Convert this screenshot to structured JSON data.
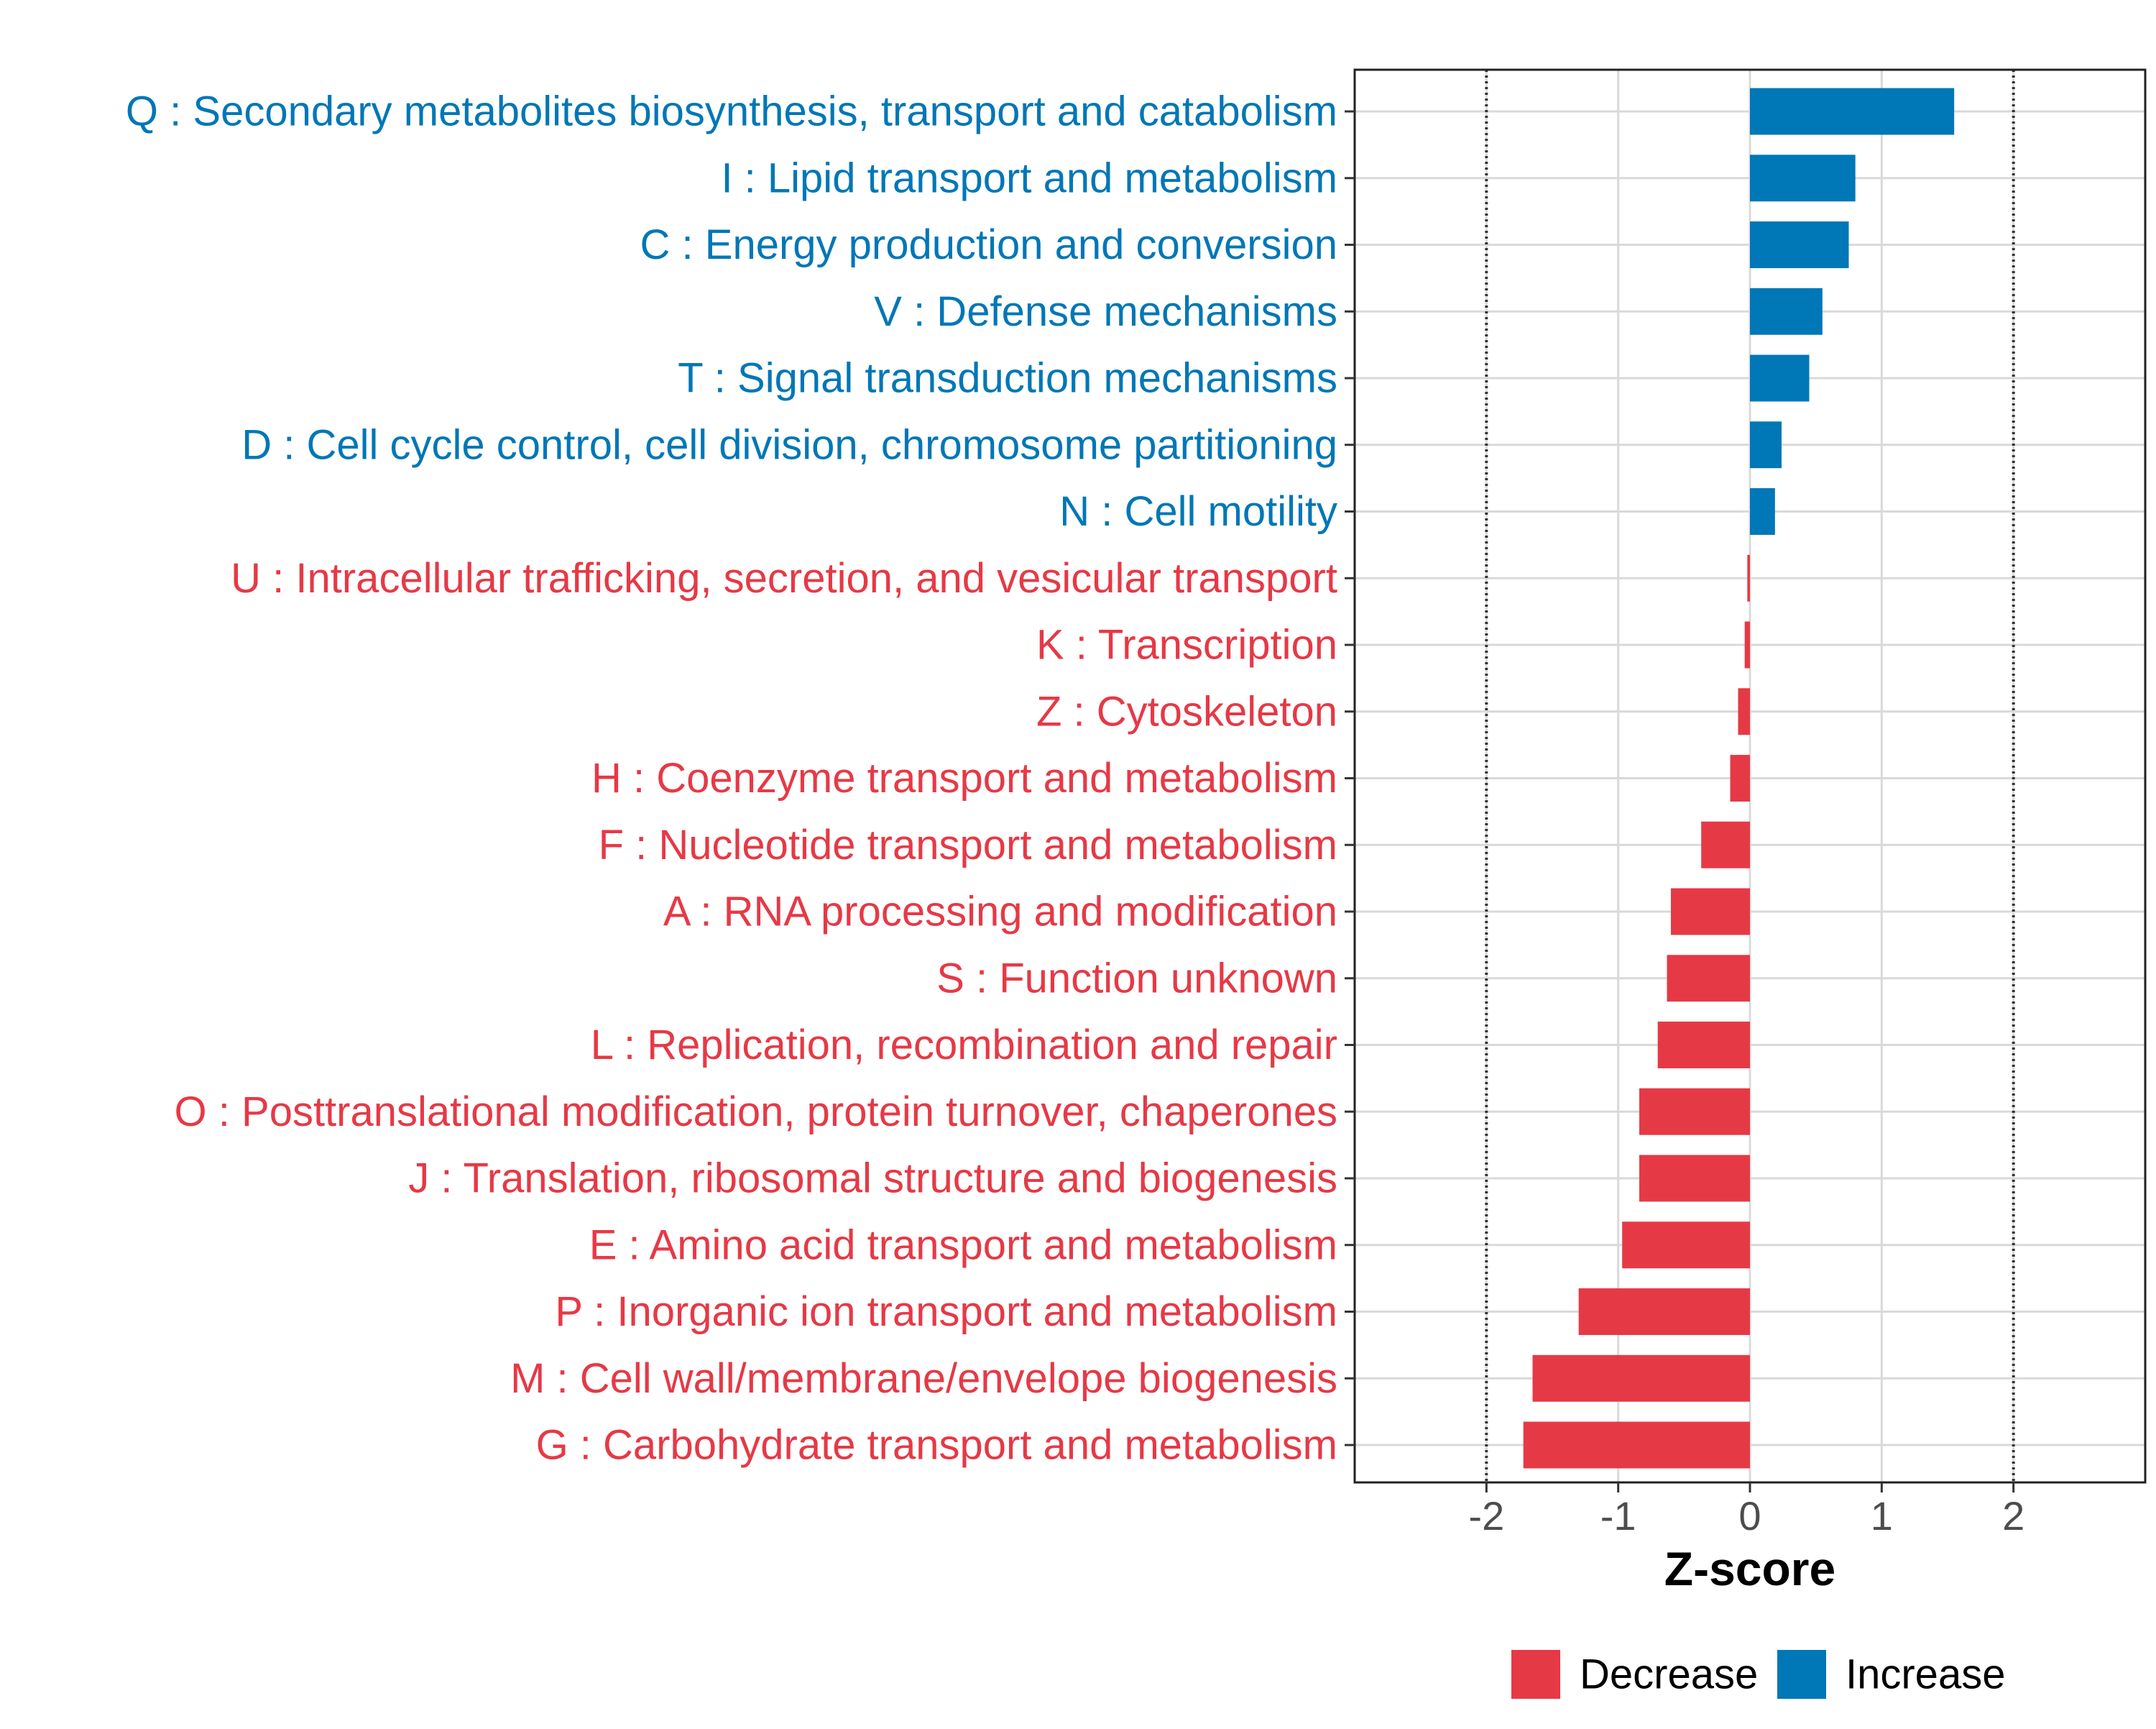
{
  "chart_data": {
    "type": "bar",
    "orientation": "horizontal",
    "xlabel": "Z-score",
    "xlim": [
      -3.0,
      3.0
    ],
    "x_ticks": [
      -2,
      -1,
      0,
      1,
      2
    ],
    "x_tick_labels": [
      "-2",
      "-1",
      "0",
      "1",
      "2"
    ],
    "reference_lines": [
      -2,
      2
    ],
    "grid": true,
    "legend": {
      "placement": "bottom",
      "entries": [
        {
          "label": "Decrease",
          "color": "#E63946"
        },
        {
          "label": "Increase",
          "color": "#0077B6"
        }
      ]
    },
    "categories": [
      {
        "label": "Q : Secondary metabolites biosynthesis, transport and catabolism",
        "value": 1.55,
        "direction": "Increase"
      },
      {
        "label": "I : Lipid transport and metabolism",
        "value": 0.8,
        "direction": "Increase"
      },
      {
        "label": "C : Energy production and conversion",
        "value": 0.75,
        "direction": "Increase"
      },
      {
        "label": "V : Defense mechanisms",
        "value": 0.55,
        "direction": "Increase"
      },
      {
        "label": "T : Signal transduction mechanisms",
        "value": 0.45,
        "direction": "Increase"
      },
      {
        "label": "D : Cell cycle control, cell division, chromosome partitioning",
        "value": 0.24,
        "direction": "Increase"
      },
      {
        "label": "N : Cell motility",
        "value": 0.19,
        "direction": "Increase"
      },
      {
        "label": "U : Intracellular trafficking, secretion, and vesicular transport",
        "value": -0.02,
        "direction": "Decrease"
      },
      {
        "label": "K : Transcription",
        "value": -0.04,
        "direction": "Decrease"
      },
      {
        "label": "Z : Cytoskeleton",
        "value": -0.09,
        "direction": "Decrease"
      },
      {
        "label": "H : Coenzyme transport and metabolism",
        "value": -0.15,
        "direction": "Decrease"
      },
      {
        "label": "F : Nucleotide transport and metabolism",
        "value": -0.37,
        "direction": "Decrease"
      },
      {
        "label": "A : RNA processing and modification",
        "value": -0.6,
        "direction": "Decrease"
      },
      {
        "label": "S : Function unknown",
        "value": -0.63,
        "direction": "Decrease"
      },
      {
        "label": "L : Replication, recombination and repair",
        "value": -0.7,
        "direction": "Decrease"
      },
      {
        "label": "O : Posttranslational modification, protein turnover, chaperones",
        "value": -0.84,
        "direction": "Decrease"
      },
      {
        "label": "J : Translation, ribosomal structure and biogenesis",
        "value": -0.84,
        "direction": "Decrease"
      },
      {
        "label": "E : Amino acid transport and metabolism",
        "value": -0.97,
        "direction": "Decrease"
      },
      {
        "label": "P : Inorganic ion transport and metabolism",
        "value": -1.3,
        "direction": "Decrease"
      },
      {
        "label": "M : Cell wall/membrane/envelope biogenesis",
        "value": -1.65,
        "direction": "Decrease"
      },
      {
        "label": "G : Carbohydrate transport and metabolism",
        "value": -1.72,
        "direction": "Decrease"
      }
    ]
  }
}
